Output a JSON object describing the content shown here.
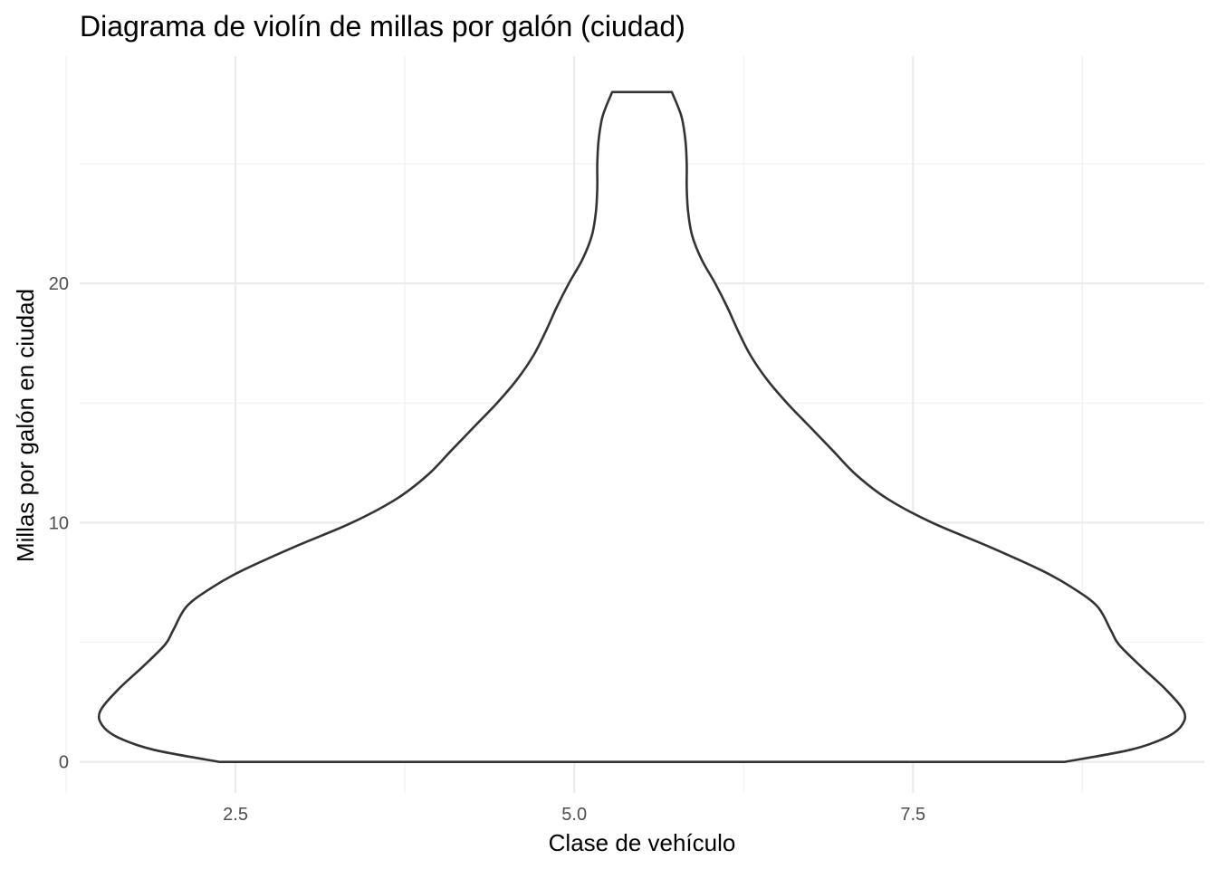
{
  "chart_data": {
    "type": "violin",
    "title": "Diagrama de violín de millas por galón (ciudad)",
    "xlabel": "Clase de vehículo",
    "ylabel": "Millas por galón en ciudad",
    "xlim": [
      1.35,
      9.65
    ],
    "ylim": [
      -1.3,
      29.5
    ],
    "x_ticks": [
      2.5,
      5.0,
      7.5
    ],
    "x_tick_labels": [
      "2.5",
      "5.0",
      "7.5"
    ],
    "x_minor_ticks": [
      1.25,
      3.75,
      6.25,
      8.75
    ],
    "y_ticks": [
      0,
      10,
      20
    ],
    "y_tick_labels": [
      "0",
      "10",
      "20"
    ],
    "y_minor_ticks": [
      5,
      15,
      25
    ],
    "grid": true,
    "violin": {
      "center_x": 5.5,
      "fill": "#ffffff",
      "outline": "#333333",
      "profile": [
        {
          "y": 0.0,
          "half_width": 3.12
        },
        {
          "y": 0.5,
          "half_width": 3.6
        },
        {
          "y": 1.0,
          "half_width": 3.86
        },
        {
          "y": 1.5,
          "half_width": 3.98
        },
        {
          "y": 2.1,
          "half_width": 4.0
        },
        {
          "y": 3.0,
          "half_width": 3.87
        },
        {
          "y": 4.0,
          "half_width": 3.68
        },
        {
          "y": 4.9,
          "half_width": 3.52
        },
        {
          "y": 5.5,
          "half_width": 3.46
        },
        {
          "y": 6.5,
          "half_width": 3.36
        },
        {
          "y": 7.3,
          "half_width": 3.17
        },
        {
          "y": 8.0,
          "half_width": 2.95
        },
        {
          "y": 9.0,
          "half_width": 2.56
        },
        {
          "y": 10.0,
          "half_width": 2.14
        },
        {
          "y": 11.0,
          "half_width": 1.81
        },
        {
          "y": 12.0,
          "half_width": 1.58
        },
        {
          "y": 13.0,
          "half_width": 1.41
        },
        {
          "y": 14.0,
          "half_width": 1.24
        },
        {
          "y": 15.0,
          "half_width": 1.07
        },
        {
          "y": 16.0,
          "half_width": 0.92
        },
        {
          "y": 17.0,
          "half_width": 0.8
        },
        {
          "y": 18.0,
          "half_width": 0.71
        },
        {
          "y": 19.0,
          "half_width": 0.63
        },
        {
          "y": 20.0,
          "half_width": 0.54
        },
        {
          "y": 21.0,
          "half_width": 0.44
        },
        {
          "y": 22.0,
          "half_width": 0.37
        },
        {
          "y": 23.0,
          "half_width": 0.34
        },
        {
          "y": 24.0,
          "half_width": 0.33
        },
        {
          "y": 25.0,
          "half_width": 0.33
        },
        {
          "y": 26.0,
          "half_width": 0.32
        },
        {
          "y": 27.0,
          "half_width": 0.29
        },
        {
          "y": 28.0,
          "half_width": 0.22
        }
      ]
    }
  }
}
